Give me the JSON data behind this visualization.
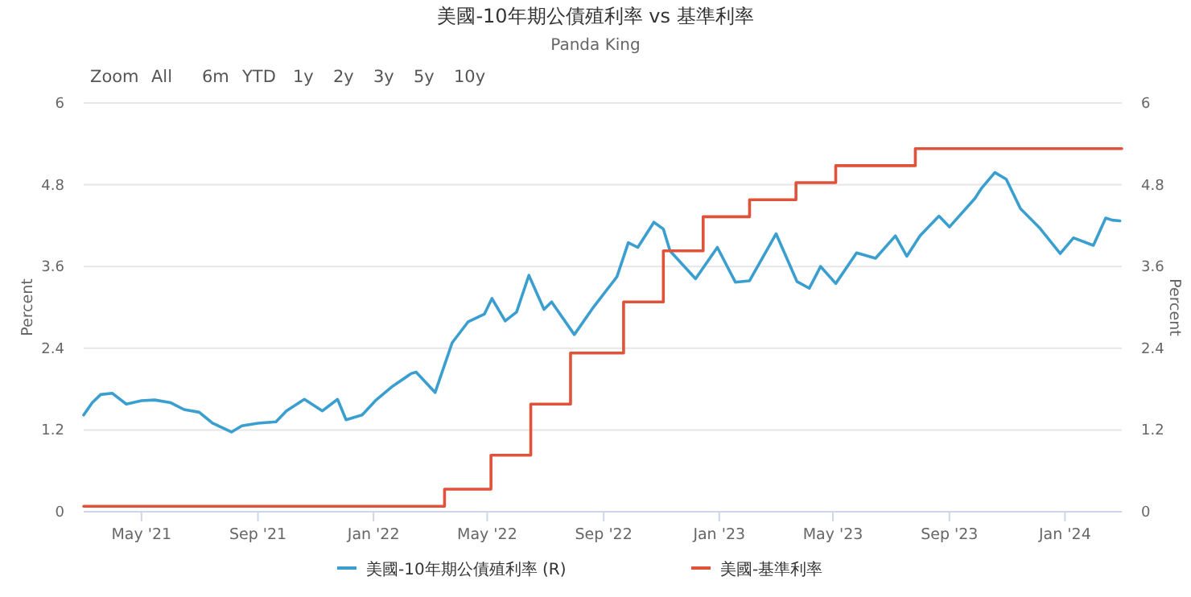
{
  "chart_data": {
    "type": "line",
    "title": "美國-10年期公債殖利率 vs 基準利率",
    "subtitle": "Panda King",
    "annotations": [
      "Zoom",
      "All",
      "6m",
      "YTD",
      "1y",
      "2y",
      "3y",
      "5y",
      "10y"
    ],
    "ylabel": "Percent",
    "y2label": "Percent",
    "xlim": [
      "2021-03-01",
      "2024-03-01"
    ],
    "xticks": [
      {
        "value": "2021-05-01",
        "label": "May '21"
      },
      {
        "value": "2021-09-01",
        "label": "Sep '21"
      },
      {
        "value": "2022-01-01",
        "label": "Jan '22"
      },
      {
        "value": "2022-05-01",
        "label": "May '22"
      },
      {
        "value": "2022-09-01",
        "label": "Sep '22"
      },
      {
        "value": "2023-01-01",
        "label": "Jan '23"
      },
      {
        "value": "2023-05-01",
        "label": "May '23"
      },
      {
        "value": "2023-09-01",
        "label": "Sep '23"
      },
      {
        "value": "2024-01-01",
        "label": "Jan '24"
      }
    ],
    "ylim": [
      0,
      6
    ],
    "yticks": [
      0,
      1.2,
      2.4,
      3.6,
      4.8,
      6
    ],
    "y2lim": [
      0,
      6
    ],
    "y2ticks": [
      0,
      1.2,
      2.4,
      3.6,
      4.8,
      6
    ],
    "grid": "y",
    "legend": "bottom",
    "line_style": "solid",
    "marker": "none",
    "series": [
      {
        "name": "美國-10年期公債殖利率 (R)",
        "color": "#3a9fcf",
        "axis": "y2",
        "x": [
          "2021-03-01",
          "2021-03-10",
          "2021-03-19",
          "2021-03-31",
          "2021-04-15",
          "2021-05-01",
          "2021-05-15",
          "2021-06-01",
          "2021-06-15",
          "2021-07-01",
          "2021-07-15",
          "2021-08-04",
          "2021-08-15",
          "2021-09-01",
          "2021-09-20",
          "2021-10-01",
          "2021-10-20",
          "2021-11-08",
          "2021-11-24",
          "2021-12-03",
          "2021-12-20",
          "2022-01-03",
          "2022-01-20",
          "2022-02-10",
          "2022-02-15",
          "2022-03-07",
          "2022-03-25",
          "2022-04-11",
          "2022-04-28",
          "2022-05-06",
          "2022-05-20",
          "2022-06-01",
          "2022-06-14",
          "2022-06-30",
          "2022-07-08",
          "2022-08-01",
          "2022-08-20",
          "2022-09-15",
          "2022-09-27",
          "2022-10-07",
          "2022-10-24",
          "2022-11-03",
          "2022-11-10",
          "2022-12-07",
          "2022-12-30",
          "2023-01-18",
          "2023-02-02",
          "2023-03-02",
          "2023-03-24",
          "2023-04-06",
          "2023-04-18",
          "2023-05-04",
          "2023-05-26",
          "2023-06-15",
          "2023-07-06",
          "2023-07-18",
          "2023-08-01",
          "2023-08-21",
          "2023-09-01",
          "2023-09-28",
          "2023-10-05",
          "2023-10-19",
          "2023-10-31",
          "2023-11-15",
          "2023-12-05",
          "2023-12-27",
          "2024-01-10",
          "2024-01-31",
          "2024-02-13",
          "2024-02-20",
          "2024-02-28"
        ],
        "values": [
          1.42,
          1.6,
          1.72,
          1.74,
          1.58,
          1.63,
          1.64,
          1.6,
          1.5,
          1.46,
          1.3,
          1.17,
          1.26,
          1.3,
          1.32,
          1.48,
          1.65,
          1.48,
          1.65,
          1.35,
          1.42,
          1.63,
          1.83,
          2.03,
          2.05,
          1.75,
          2.48,
          2.79,
          2.9,
          3.13,
          2.8,
          2.93,
          3.47,
          2.97,
          3.08,
          2.6,
          2.98,
          3.45,
          3.95,
          3.88,
          4.25,
          4.15,
          3.83,
          3.42,
          3.88,
          3.37,
          3.39,
          4.08,
          3.38,
          3.28,
          3.6,
          3.35,
          3.8,
          3.72,
          4.05,
          3.75,
          4.05,
          4.34,
          4.18,
          4.6,
          4.75,
          4.98,
          4.88,
          4.45,
          4.17,
          3.79,
          4.02,
          3.91,
          4.31,
          4.28,
          4.27
        ]
      },
      {
        "name": "美國-基準利率",
        "color": "#e0523a",
        "type": "step",
        "x": [
          "2021-03-01",
          "2022-03-17",
          "2022-05-05",
          "2022-06-16",
          "2022-07-28",
          "2022-09-22",
          "2022-11-03",
          "2022-12-15",
          "2023-02-02",
          "2023-03-23",
          "2023-05-04",
          "2023-07-27",
          "2024-03-01"
        ],
        "values": [
          0.08,
          0.33,
          0.83,
          1.58,
          2.33,
          3.08,
          3.83,
          4.33,
          4.58,
          4.83,
          5.08,
          5.33,
          5.33
        ]
      }
    ]
  }
}
